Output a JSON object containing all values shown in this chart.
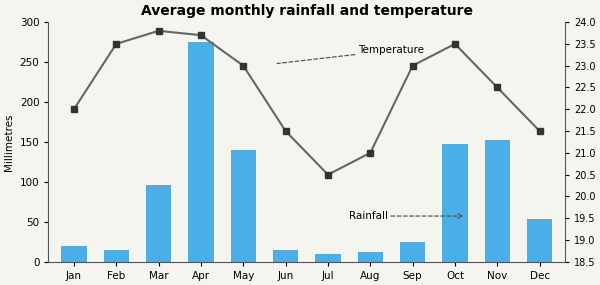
{
  "months": [
    "Jan",
    "Feb",
    "Mar",
    "Apr",
    "May",
    "Jun",
    "Jul",
    "Aug",
    "Sep",
    "Oct",
    "Nov",
    "Dec"
  ],
  "rainfall": [
    20,
    15,
    96,
    275,
    140,
    15,
    10,
    12,
    25,
    148,
    153,
    54
  ],
  "temperature": [
    22.0,
    23.5,
    23.8,
    23.7,
    23.0,
    21.5,
    20.5,
    21.0,
    23.0,
    23.5,
    22.5,
    21.5
  ],
  "bar_color": "#4baee8",
  "line_color": "#666666",
  "marker_color": "#333333",
  "title": "Average monthly rainfall and temperature",
  "ylabel_left": "Millimetres",
  "ylim_left": [
    0,
    300
  ],
  "ylim_right": [
    18.5,
    24.0
  ],
  "yticks_left": [
    0,
    50,
    100,
    150,
    200,
    250,
    300
  ],
  "yticks_right": [
    18.5,
    19.0,
    19.5,
    20.0,
    20.5,
    21.0,
    21.5,
    22.0,
    22.5,
    23.0,
    23.5,
    24.0
  ],
  "temp_label": "Temperature",
  "rain_label": "Rainfall",
  "background_color": "#f5f5f0"
}
